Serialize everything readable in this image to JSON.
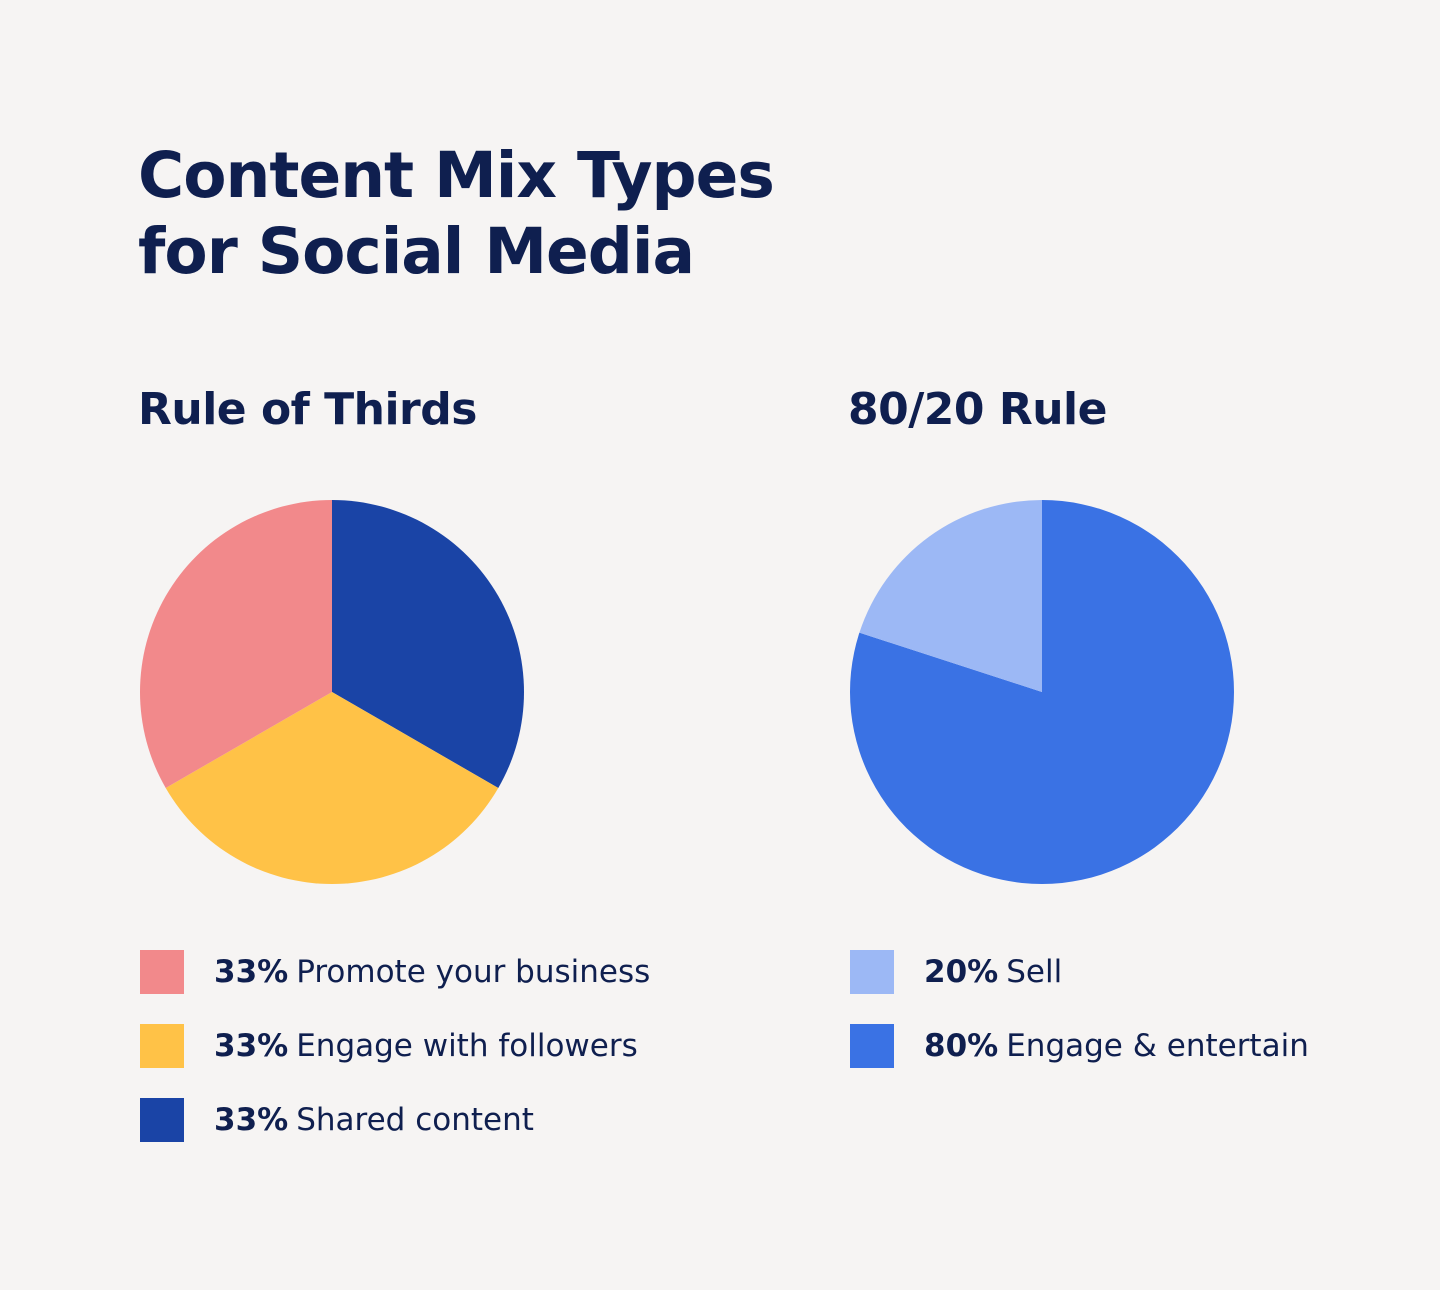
{
  "title": {
    "line1": "Content Mix Types",
    "line2": "for Social Media"
  },
  "chart_data": [
    {
      "type": "pie",
      "title": "Rule of Thirds",
      "slices": [
        {
          "pct_label": "33%",
          "label": "Promote your business",
          "value": 33,
          "color": "#f2898b"
        },
        {
          "pct_label": "33%",
          "label": "Engage with followers",
          "value": 33,
          "color": "#ffc247"
        },
        {
          "pct_label": "33%",
          "label": "Shared content",
          "value": 33,
          "color": "#1a44a6"
        }
      ]
    },
    {
      "type": "pie",
      "title": "80/20 Rule",
      "slices": [
        {
          "pct_label": "20%",
          "label": "Sell",
          "value": 20,
          "color": "#9cb8f5"
        },
        {
          "pct_label": "80%",
          "label": "Engage & entertain",
          "value": 80,
          "color": "#3a72e4"
        }
      ]
    }
  ]
}
